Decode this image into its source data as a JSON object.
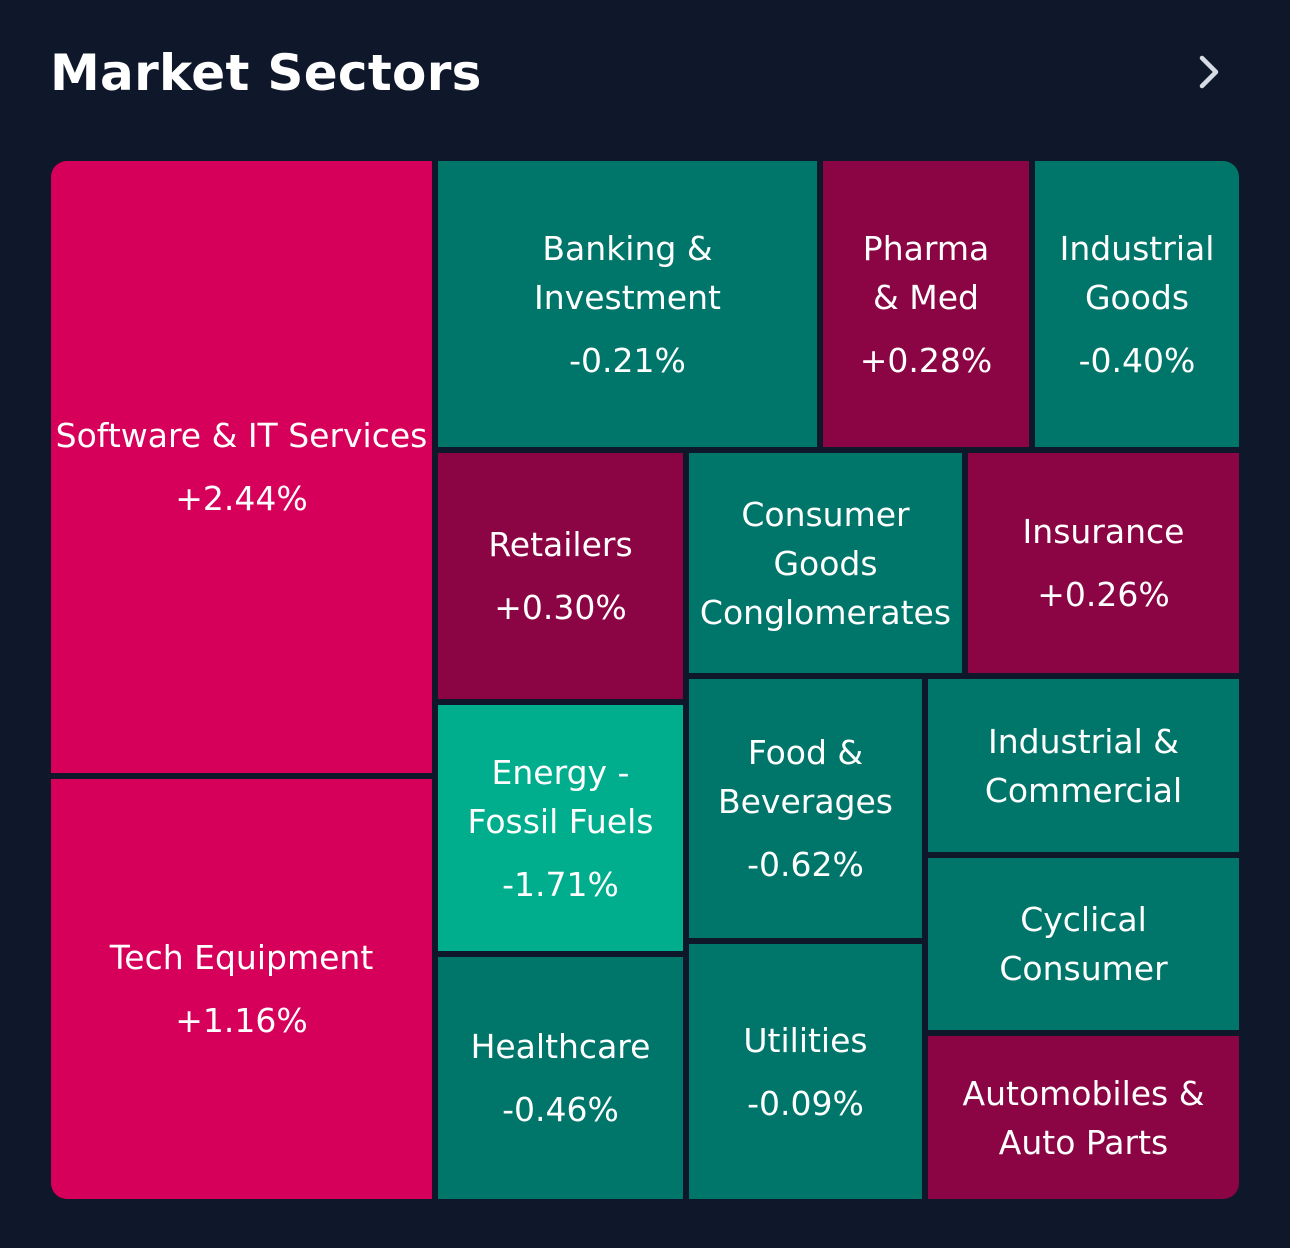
{
  "header": {
    "title": "Market Sectors",
    "chevron_icon": "chevron-right-icon"
  },
  "colors": {
    "background": "#0f172a",
    "up_strong": "#d6005a",
    "up": "#8b0544",
    "down": "#00756a",
    "down_strong": "#00ad8c"
  },
  "sectors": [
    {
      "name": "Software & IT Services",
      "change": "+2.44%"
    },
    {
      "name": "Tech Equipment",
      "change": "+1.16%"
    },
    {
      "name": "Banking &\nInvestment",
      "change": "-0.21%"
    },
    {
      "name": "Pharma\n& Med",
      "change": "+0.28%"
    },
    {
      "name": "Industrial\nGoods",
      "change": "-0.40%"
    },
    {
      "name": "Retailers",
      "change": "+0.30%"
    },
    {
      "name": "Consumer\nGoods\nConglomerates",
      "change": ""
    },
    {
      "name": "Insurance",
      "change": "+0.26%"
    },
    {
      "name": "Energy -\nFossil Fuels",
      "change": "-1.71%"
    },
    {
      "name": "Food &\nBeverages",
      "change": "-0.62%"
    },
    {
      "name": "Industrial &\nCommercial",
      "change": ""
    },
    {
      "name": "Cyclical\nConsumer",
      "change": ""
    },
    {
      "name": "Healthcare",
      "change": "-0.46%"
    },
    {
      "name": "Utilities",
      "change": "-0.09%"
    },
    {
      "name": "Automobiles &\nAuto Parts",
      "change": ""
    }
  ]
}
